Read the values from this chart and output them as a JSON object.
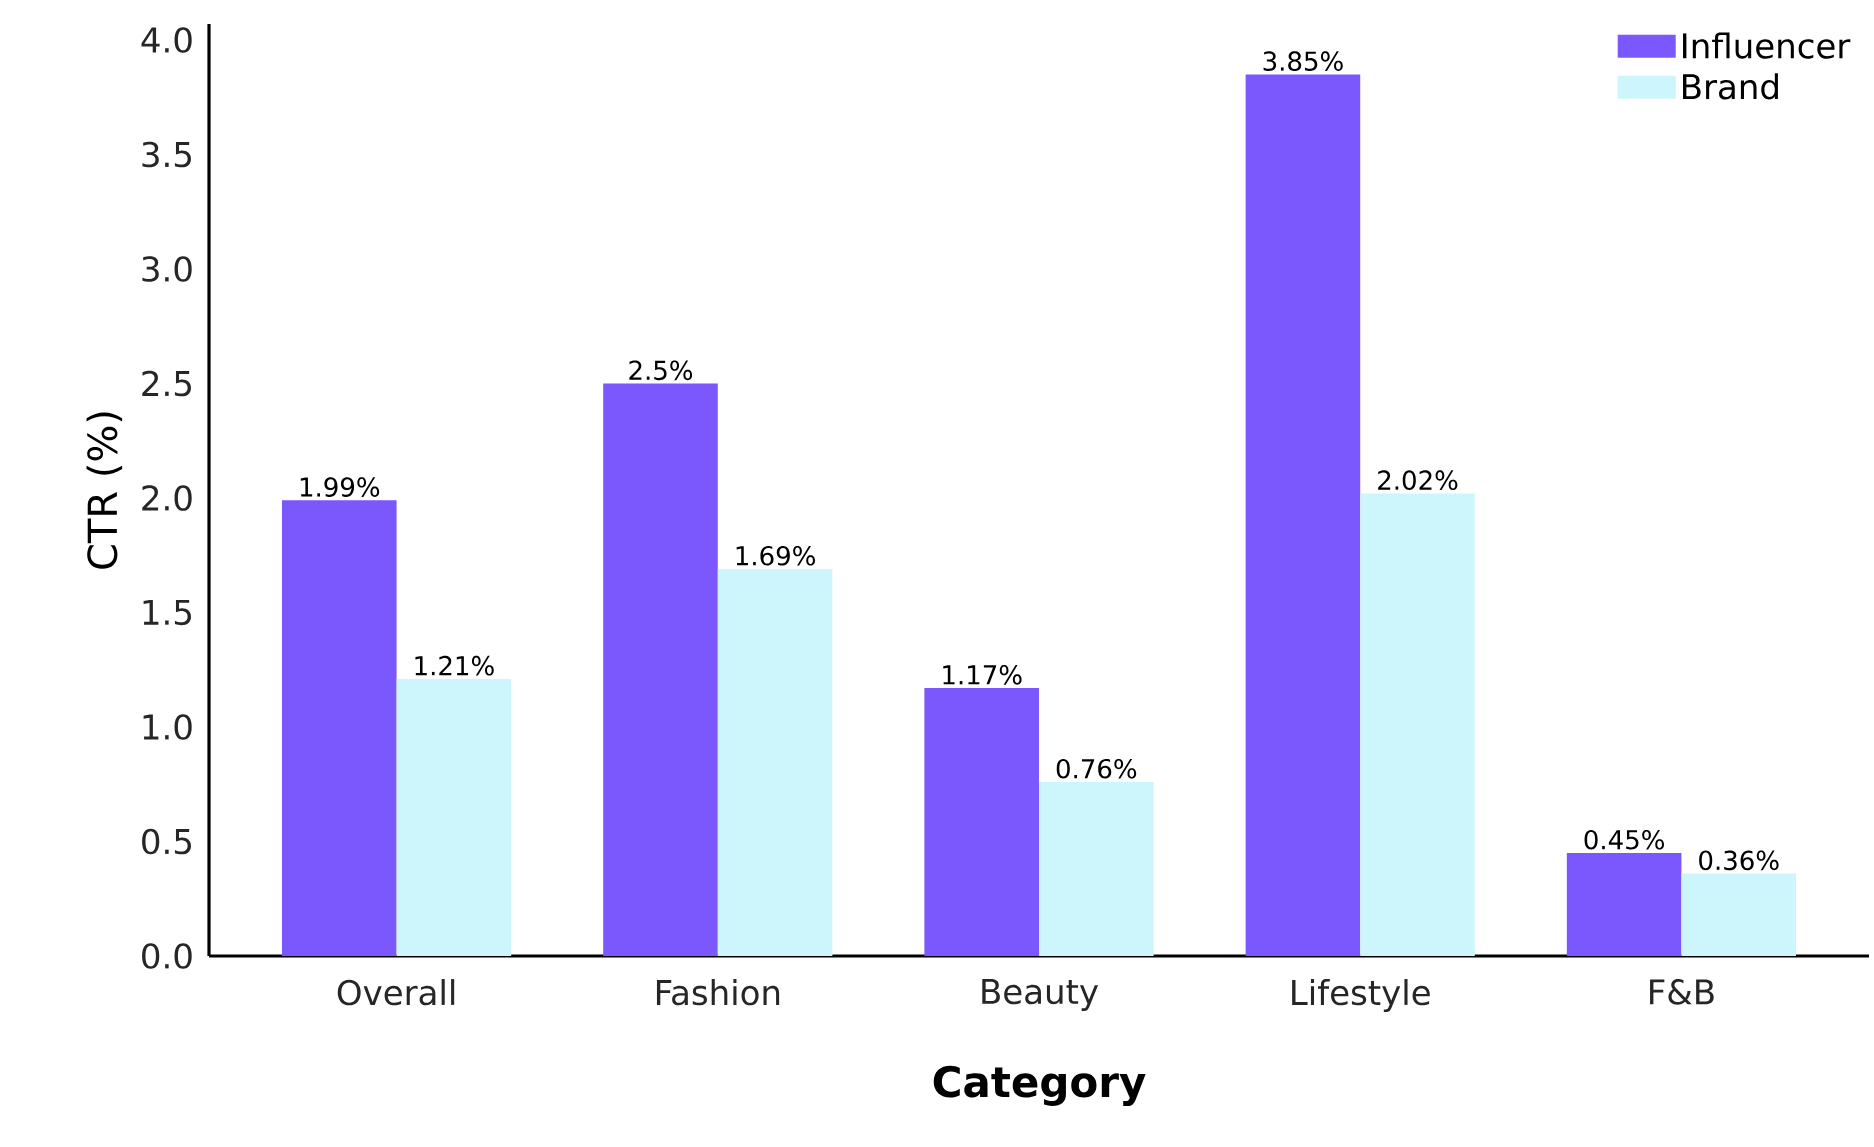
{
  "chart_data": {
    "type": "bar",
    "xlabel": "Category",
    "ylabel": "CTR (%)",
    "categories": [
      "Overall",
      "Fashion",
      "Beauty",
      "Lifestyle",
      "F&B"
    ],
    "series": [
      {
        "name": "Influencer",
        "color": "#7b57fe",
        "values": [
          1.99,
          2.5,
          1.17,
          3.85,
          0.45
        ],
        "value_labels": [
          "1.99%",
          "2.5%",
          "1.17%",
          "3.85%",
          "0.45%"
        ]
      },
      {
        "name": "Brand",
        "color": "#cdf6fc",
        "values": [
          1.21,
          1.69,
          0.76,
          2.02,
          0.36
        ],
        "value_labels": [
          "1.21%",
          "1.69%",
          "0.76%",
          "2.02%",
          "0.36%"
        ]
      }
    ],
    "ylim": [
      0,
      4.07
    ],
    "yticks": [
      {
        "value": 0,
        "label": "0.0"
      },
      0.5,
      {
        "value": 1,
        "label": "1.0"
      },
      1.5,
      {
        "value": 2,
        "label": "2.0"
      },
      2.5,
      {
        "value": 3,
        "label": "3.0"
      },
      3.5,
      {
        "value": 4,
        "label": "4.0"
      }
    ],
    "legend": "top right"
  }
}
